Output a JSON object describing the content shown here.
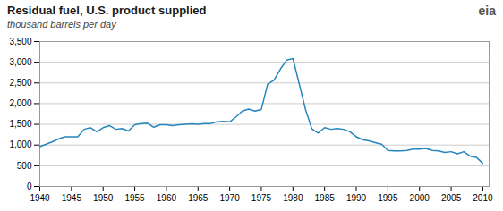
{
  "chart_data": {
    "type": "line",
    "title": "Residual fuel, U.S. product supplied",
    "subtitle": "thousand barrels per day",
    "annotations": [
      "eia"
    ],
    "x": [
      1940,
      1941,
      1942,
      1943,
      1944,
      1945,
      1946,
      1947,
      1948,
      1949,
      1950,
      1951,
      1952,
      1953,
      1954,
      1955,
      1956,
      1957,
      1958,
      1959,
      1960,
      1961,
      1962,
      1963,
      1964,
      1965,
      1966,
      1967,
      1968,
      1969,
      1970,
      1971,
      1972,
      1973,
      1974,
      1975,
      1976,
      1977,
      1978,
      1979,
      1980,
      1981,
      1982,
      1983,
      1984,
      1985,
      1986,
      1987,
      1988,
      1989,
      1990,
      1991,
      1992,
      1993,
      1994,
      1995,
      1996,
      1997,
      1998,
      1999,
      2000,
      2001,
      2002,
      2003,
      2004,
      2005,
      2006,
      2007,
      2008,
      2009,
      2010
    ],
    "values": [
      960,
      1020,
      1080,
      1150,
      1200,
      1200,
      1200,
      1380,
      1420,
      1320,
      1420,
      1470,
      1380,
      1400,
      1340,
      1490,
      1520,
      1530,
      1430,
      1490,
      1490,
      1470,
      1490,
      1500,
      1510,
      1500,
      1520,
      1520,
      1560,
      1570,
      1560,
      1680,
      1820,
      1870,
      1820,
      1860,
      2470,
      2570,
      2830,
      3050,
      3090,
      2470,
      1850,
      1390,
      1290,
      1420,
      1380,
      1400,
      1380,
      1320,
      1200,
      1130,
      1100,
      1060,
      1020,
      870,
      860,
      860,
      870,
      900,
      900,
      920,
      870,
      860,
      820,
      840,
      790,
      840,
      730,
      700,
      560
    ],
    "color": "#2585BE",
    "xlim": [
      1940,
      2011
    ],
    "ylim": [
      0,
      3500
    ],
    "xticks": [
      1940,
      1945,
      1950,
      1955,
      1960,
      1965,
      1970,
      1975,
      1980,
      1985,
      1990,
      1995,
      2000,
      2005,
      2010
    ],
    "yticks": [
      0,
      500,
      {
        "value": 1000,
        "label": "1,000"
      },
      {
        "value": 1500,
        "label": "1,500"
      },
      {
        "value": 2000,
        "label": "2,000"
      },
      {
        "value": 2500,
        "label": "2,500"
      },
      {
        "value": 3000,
        "label": "3,000"
      },
      {
        "value": 3500,
        "label": "3,500"
      }
    ],
    "grid": true
  }
}
